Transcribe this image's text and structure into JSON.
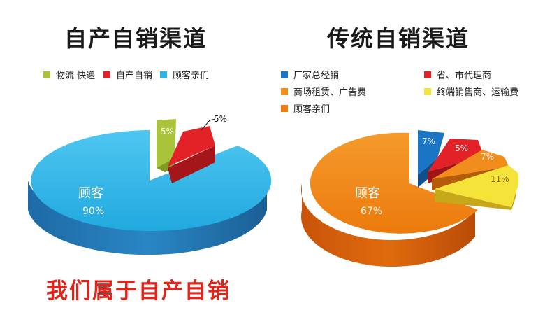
{
  "chart_data": [
    {
      "type": "pie",
      "title": "自产自销渠道",
      "legend": [
        "物流 快递",
        "自产自销",
        "顾客亲们"
      ],
      "slices": [
        {
          "name": "物流 快递",
          "value": 5,
          "label": "5%",
          "color": "#a9c43a"
        },
        {
          "name": "自产自销",
          "value": 5,
          "label": "5%",
          "color": "#e32228"
        },
        {
          "name": "顾客亲们",
          "value": 90,
          "label": "90%",
          "inner_label": "顾客",
          "color": "#2cb6e8"
        }
      ],
      "style": "3d-exploded"
    },
    {
      "type": "pie",
      "title": "传统自销渠道",
      "legend": [
        "厂家总经销",
        "省、市代理商",
        "商场租赁、广告费",
        "终端销售商、运输费",
        "顾客亲们"
      ],
      "slices": [
        {
          "name": "厂家总经销",
          "value": 7,
          "label": "7%",
          "color": "#1a75c4"
        },
        {
          "name": "省、市代理商",
          "value": 5,
          "label": "5%",
          "color": "#e32228"
        },
        {
          "name": "商场租赁、广告费",
          "value": 7,
          "label": "7%",
          "color": "#f08d1d"
        },
        {
          "name": "终端销售商、运输费",
          "value": 11,
          "label": "11%",
          "color": "#f6e33a"
        },
        {
          "name": "顾客亲们",
          "value": 67,
          "label": "67%",
          "inner_label": "顾客",
          "color": "#ef7d10"
        }
      ],
      "style": "3d-exploded"
    }
  ],
  "left": {
    "title": "自产自销渠道",
    "legend": [
      {
        "label": "物流 快递",
        "color": "#a9c43a"
      },
      {
        "label": "自产自销",
        "color": "#e32228"
      },
      {
        "label": "顾客亲们",
        "color": "#2cb6e8"
      }
    ],
    "main_label": "顾客",
    "main_pct": "90%",
    "pct_a": "5%",
    "pct_b": "5%"
  },
  "right": {
    "title": "传统自销渠道",
    "legend": [
      {
        "label": "厂家总经销",
        "color": "#1a75c4"
      },
      {
        "label": "省、市代理商",
        "color": "#e32228"
      },
      {
        "label": "商场租赁、广告费",
        "color": "#f08d1d"
      },
      {
        "label": "终端销售商、运输费",
        "color": "#f6e33a"
      },
      {
        "label": "顾客亲们",
        "color": "#ef7d10"
      }
    ],
    "main_label": "顾客",
    "main_pct": "67%",
    "pct_a": "7%",
    "pct_b": "5%",
    "pct_c": "7%",
    "pct_d": "11%"
  },
  "tagline": "我们属于自产自销"
}
